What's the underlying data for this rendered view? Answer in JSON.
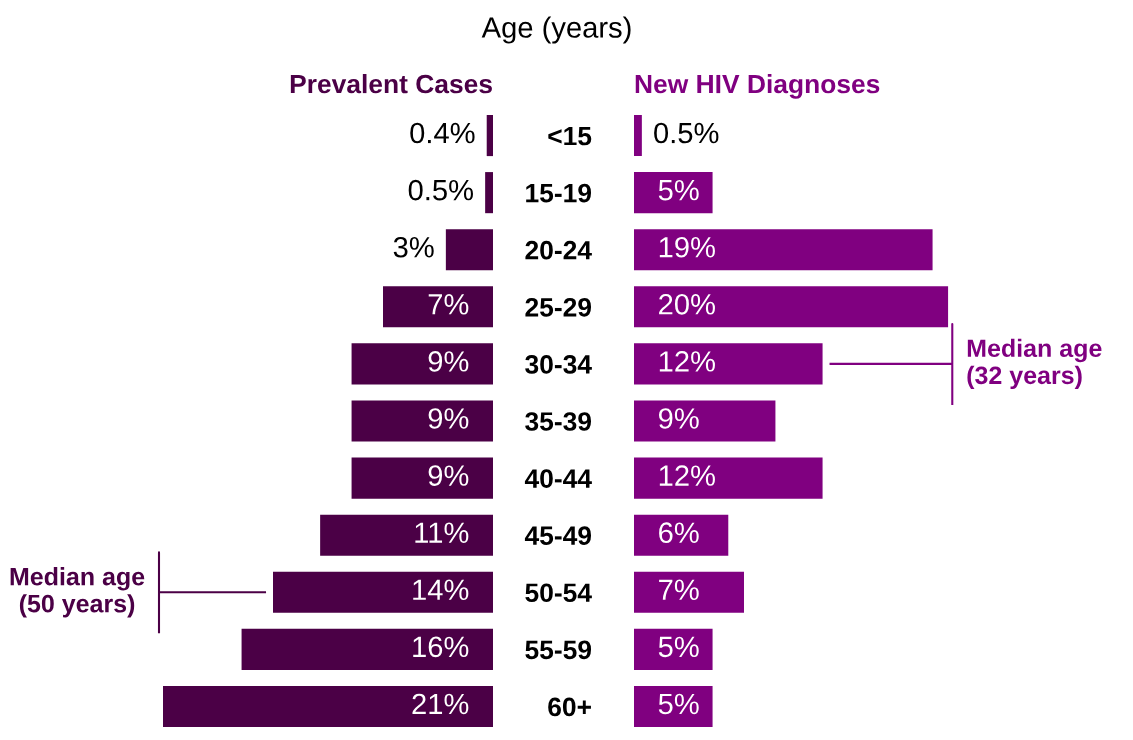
{
  "chart_data": [
    {
      "type": "bar",
      "orientation": "horizontal",
      "title": "Prevalent Cases",
      "categories": [
        "<15",
        "15-19",
        "20-24",
        "25-29",
        "30-34",
        "35-39",
        "40-44",
        "45-49",
        "50-54",
        "55-59",
        "60+"
      ],
      "xlim": [
        21,
        0
      ],
      "tick_labels": false,
      "series": [
        {
          "color": "#4b0046",
          "values": [
            0.4,
            0.5,
            3,
            7,
            9,
            9,
            9,
            11,
            14,
            16,
            21
          ],
          "value_labels": [
            "0.4%",
            "0.5%",
            "3%",
            "7%",
            "9%",
            "9%",
            "9%",
            "11%",
            "14%",
            "16%",
            "21%"
          ]
        }
      ],
      "annotations": [
        {
          "text": "Median age\n(50 years)",
          "x": 14,
          "y": "50-54"
        }
      ]
    },
    {
      "type": "bar",
      "orientation": "horizontal",
      "title": "New HIV Diagnoses",
      "ylabel": "Age (years)",
      "categories": [
        "<15",
        "15-19",
        "20-24",
        "25-29",
        "30-34",
        "35-39",
        "40-44",
        "45-49",
        "50-54",
        "55-59",
        "60+"
      ],
      "xlim": [
        0,
        20
      ],
      "tick_labels": "y",
      "series": [
        {
          "color": "#800080",
          "values": [
            0.5,
            5,
            19,
            20,
            12,
            9,
            12,
            6,
            7,
            5,
            5
          ],
          "value_labels": [
            "0.5%",
            "5%",
            "19%",
            "20%",
            "12%",
            "9%",
            "12%",
            "6%",
            "7%",
            "5%",
            "5%"
          ]
        }
      ],
      "annotations": [
        {
          "text": "Median age\n(32 years)",
          "x": 12,
          "y": "30-34"
        }
      ]
    }
  ]
}
